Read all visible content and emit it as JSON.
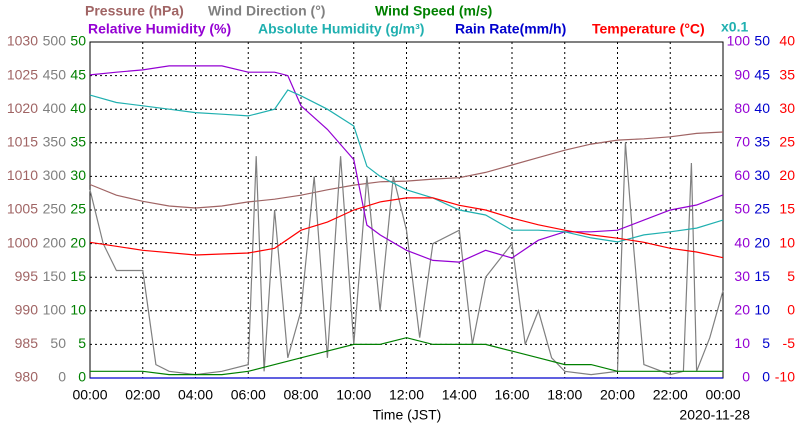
{
  "chart_data": {
    "type": "line",
    "x_label": "Time (JST)",
    "date": "2020-11-28",
    "annotation": "x0.1",
    "annotation_color": "#20b0b0",
    "xlim": [
      0,
      24
    ],
    "xticks": [
      {
        "value": 0,
        "label": "00:00"
      },
      {
        "value": 2,
        "label": "02:00"
      },
      {
        "value": 4,
        "label": "04:00"
      },
      {
        "value": 6,
        "label": "06:00"
      },
      {
        "value": 8,
        "label": "08:00"
      },
      {
        "value": 10,
        "label": "10:00"
      },
      {
        "value": 12,
        "label": "12:00"
      },
      {
        "value": 14,
        "label": "14:00"
      },
      {
        "value": 16,
        "label": "16:00"
      },
      {
        "value": 18,
        "label": "18:00"
      },
      {
        "value": 20,
        "label": "20:00"
      },
      {
        "value": 22,
        "label": "22:00"
      },
      {
        "value": 24,
        "label": "00:00"
      }
    ],
    "grid": true,
    "axes": [
      {
        "side": "left",
        "color": "#a06464",
        "lim": [
          980,
          1030
        ],
        "ticks": [
          980,
          985,
          990,
          995,
          1000,
          1005,
          1010,
          1015,
          1020,
          1025,
          1030
        ]
      },
      {
        "side": "left",
        "color": "#808080",
        "lim": [
          0,
          500
        ],
        "ticks": [
          0,
          50,
          100,
          150,
          200,
          250,
          300,
          350,
          400,
          450,
          500
        ]
      },
      {
        "side": "left",
        "color": "#008000",
        "lim": [
          0,
          50
        ],
        "ticks": [
          0,
          5,
          10,
          15,
          20,
          25,
          30,
          35,
          40,
          45,
          50
        ]
      },
      {
        "side": "right",
        "color": "#9400d3",
        "lim": [
          0,
          100
        ],
        "ticks": [
          0,
          10,
          20,
          30,
          40,
          50,
          60,
          70,
          80,
          90,
          100
        ]
      },
      {
        "side": "right",
        "color": "#0000cd",
        "lim": [
          0,
          50
        ],
        "ticks": [
          0,
          5,
          10,
          15,
          20,
          25,
          30,
          35,
          40,
          45,
          50
        ]
      },
      {
        "side": "right",
        "color": "#ff0000",
        "lim": [
          -10,
          40
        ],
        "ticks": [
          -10,
          -5,
          0,
          5,
          10,
          15,
          20,
          25,
          30,
          35,
          40
        ]
      }
    ],
    "series": [
      {
        "name": "Pressure (hPa)",
        "color": "#a06464",
        "axis": 0,
        "x": [
          0,
          1,
          2,
          3,
          4,
          5,
          6,
          7,
          8,
          9,
          10,
          11,
          12,
          13,
          14,
          15,
          16,
          17,
          18,
          19,
          20,
          21,
          22,
          23,
          24
        ],
        "values": [
          1008.8,
          1007.2,
          1006.3,
          1005.6,
          1005.3,
          1005.6,
          1006.2,
          1006.6,
          1007.2,
          1008.0,
          1008.7,
          1009.2,
          1009.3,
          1009.6,
          1009.8,
          1010.6,
          1011.7,
          1012.8,
          1013.9,
          1014.8,
          1015.4,
          1015.6,
          1015.9,
          1016.4,
          1016.6
        ]
      },
      {
        "name": "Wind Direction (°)",
        "color": "#808080",
        "axis": 1,
        "x": [
          0,
          0.5,
          1,
          2,
          2.5,
          3,
          4,
          5,
          6,
          6.3,
          6.6,
          7,
          7.5,
          8,
          8.5,
          9,
          9.5,
          10,
          10.5,
          11,
          11.5,
          12,
          12.5,
          13,
          14,
          14.5,
          15,
          16,
          16.5,
          17,
          17.5,
          18,
          19,
          20,
          20.3,
          20.6,
          21,
          22,
          22.5,
          22.8,
          23,
          23.5,
          24
        ],
        "values": [
          280,
          200,
          160,
          160,
          20,
          10,
          5,
          10,
          20,
          330,
          10,
          250,
          30,
          100,
          300,
          30,
          330,
          50,
          300,
          100,
          300,
          220,
          60,
          200,
          220,
          50,
          150,
          200,
          50,
          100,
          30,
          10,
          5,
          10,
          350,
          200,
          20,
          5,
          10,
          320,
          10,
          60,
          130
        ]
      },
      {
        "name": "Wind Speed (m/s)",
        "color": "#008000",
        "axis": 2,
        "x": [
          0,
          1,
          2,
          3,
          4,
          5,
          6,
          7,
          8,
          9,
          10,
          11,
          12,
          13,
          14,
          15,
          16,
          17,
          18,
          19,
          20,
          21,
          22,
          23,
          24
        ],
        "values": [
          1,
          1,
          1,
          0.5,
          0.5,
          0.5,
          1,
          2,
          3,
          4,
          5,
          5,
          6,
          5,
          5,
          5,
          4,
          3,
          2,
          2,
          1,
          1,
          1,
          1,
          1
        ]
      },
      {
        "name": "Relative Humidity (%)",
        "color": "#9400d3",
        "axis": 3,
        "x": [
          0,
          1,
          2,
          3,
          4,
          5,
          6,
          7,
          7.5,
          8,
          9,
          10,
          10.5,
          11,
          12,
          13,
          14,
          15,
          16,
          17,
          18,
          19,
          20,
          21,
          22,
          23,
          24
        ],
        "values": [
          90.2,
          91,
          91.7,
          92.9,
          92.9,
          92.9,
          91,
          91,
          90,
          81,
          74,
          65,
          45.5,
          42.6,
          38,
          35,
          34.5,
          38,
          35.7,
          41,
          43.5,
          43.5,
          44,
          47,
          50,
          51.5,
          54.5
        ]
      },
      {
        "name": "Absolute Humidity (g/m³)",
        "color": "#20b0b0",
        "axis": 3,
        "x": [
          0,
          1,
          2,
          3,
          4,
          5,
          6,
          7,
          7.5,
          8,
          9,
          10,
          10.5,
          11,
          12,
          13,
          14,
          15,
          16,
          17,
          18,
          19,
          20,
          21,
          22,
          23,
          24
        ],
        "values": [
          84.2,
          82,
          81,
          80,
          79,
          78.5,
          78,
          80,
          85.7,
          84,
          80,
          75,
          63,
          60,
          56,
          53.6,
          50,
          48.5,
          44,
          44,
          43.5,
          41.7,
          40.5,
          42.6,
          43.5,
          44.6,
          47
        ]
      },
      {
        "name": "Rain Rate(mm/h)",
        "color": "#0000cd",
        "axis": 4,
        "x": [
          0,
          24
        ],
        "values": [
          0,
          0
        ]
      },
      {
        "name": "Temperature (°C)",
        "color": "#ff0000",
        "axis": 5,
        "x": [
          0,
          2,
          4,
          6,
          7,
          8,
          9,
          10,
          11,
          12,
          13,
          14,
          15,
          16,
          17,
          18,
          19,
          20,
          21,
          22,
          23,
          24
        ],
        "values": [
          10.2,
          9.0,
          8.3,
          8.6,
          9.3,
          12.0,
          13.2,
          15,
          16.2,
          16.8,
          16.8,
          15.7,
          15,
          13.8,
          12.8,
          12,
          11.3,
          10.8,
          10.2,
          9.3,
          8.75,
          7.9
        ]
      }
    ]
  }
}
